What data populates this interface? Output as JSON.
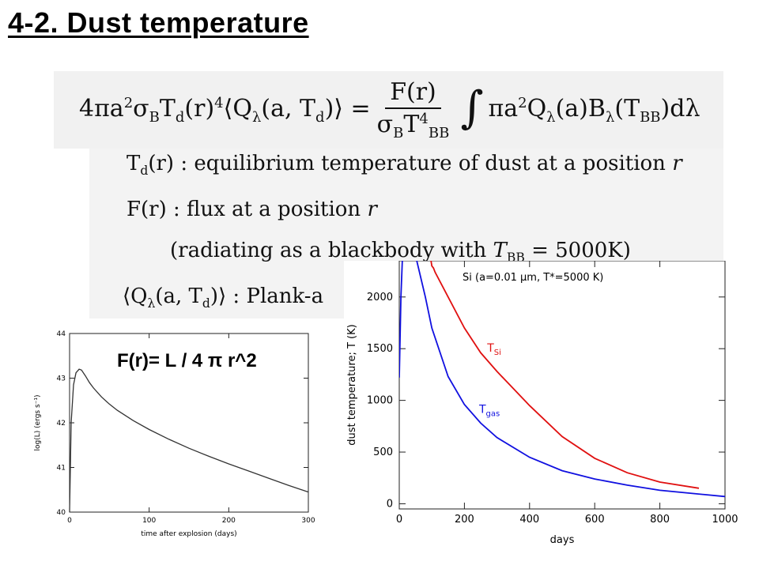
{
  "slide": {
    "title": "4-2. Dust temperature",
    "flux_formula": "F(r)= L / 4 π r^2"
  },
  "definitions": {
    "td": ": equilibrium temperature of dust at a position",
    "flux": ": flux at a position",
    "radiating": "(radiating as a blackbody with",
    "radiating_value": "= 5000K)",
    "q": ": Plank-a"
  },
  "chart_data": [
    {
      "type": "line",
      "title": "",
      "xlabel": "time after explosion (days)",
      "ylabel": "log(L) (ergs s⁻¹)",
      "xlim": [
        0,
        300
      ],
      "ylim": [
        40,
        44
      ],
      "xticks": [
        0,
        100,
        200,
        300
      ],
      "yticks": [
        40,
        41,
        42,
        43,
        44
      ],
      "series": [
        {
          "color": "#333333",
          "x": [
            0,
            2,
            5,
            8,
            12,
            15,
            20,
            25,
            30,
            40,
            50,
            60,
            80,
            100,
            125,
            150,
            175,
            200,
            225,
            250,
            275,
            300
          ],
          "y": [
            40.0,
            42.0,
            42.85,
            43.12,
            43.2,
            43.18,
            43.05,
            42.9,
            42.78,
            42.58,
            42.42,
            42.28,
            42.05,
            41.85,
            41.63,
            41.43,
            41.25,
            41.08,
            40.92,
            40.76,
            40.6,
            40.45
          ]
        }
      ]
    },
    {
      "type": "line",
      "title": "Si (a=0.01 μm, T*=5000 K)",
      "xlabel": "days",
      "ylabel": "dust temperature; T (K)",
      "xlim": [
        0,
        1000
      ],
      "ylim": [
        -50,
        2350
      ],
      "xticks": [
        0,
        200,
        400,
        600,
        800,
        1000
      ],
      "yticks": [
        0,
        500,
        1000,
        1500,
        2000
      ],
      "series": [
        {
          "name": "T_Si",
          "label_main": "T",
          "label_sub": "Si",
          "color": "#e01010",
          "label_at": [
            270,
            1470
          ],
          "x": [
            95,
            100,
            105,
            110,
            150,
            200,
            250,
            300,
            400,
            500,
            600,
            700,
            800,
            920
          ],
          "y": [
            2400,
            2300,
            2280,
            2240,
            2000,
            1700,
            1460,
            1280,
            950,
            650,
            440,
            300,
            210,
            150
          ]
        },
        {
          "name": "T_gas",
          "label_main": "T",
          "label_sub": "gas",
          "color": "#1010e0",
          "label_at": [
            245,
            880
          ],
          "x": [
            0,
            5,
            10,
            20,
            30,
            50,
            80,
            100,
            150,
            200,
            250,
            300,
            400,
            500,
            600,
            700,
            800,
            900,
            1000
          ],
          "y": [
            1220,
            2000,
            2400,
            2400,
            2400,
            2400,
            2000,
            1700,
            1230,
            960,
            780,
            640,
            450,
            320,
            240,
            180,
            130,
            100,
            70
          ]
        }
      ]
    }
  ]
}
